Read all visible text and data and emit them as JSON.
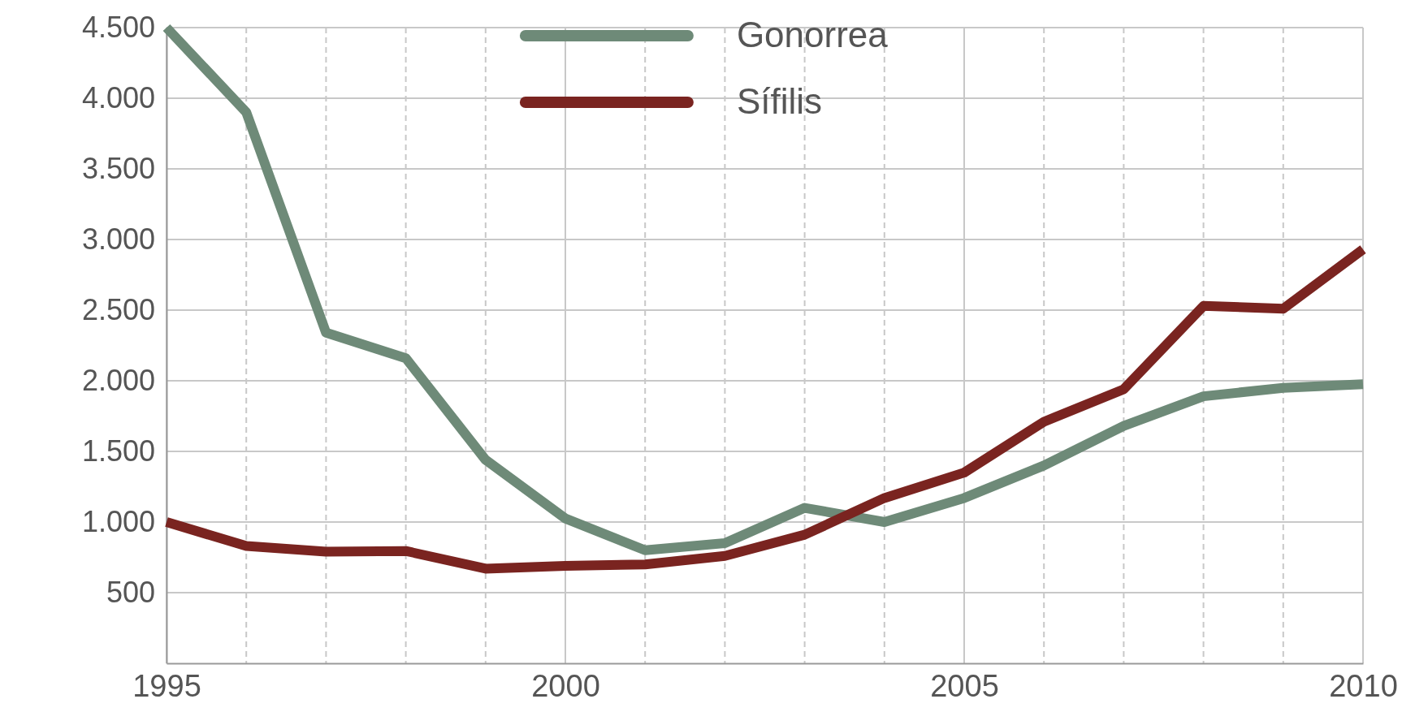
{
  "chart_data": {
    "type": "line",
    "x": [
      1995,
      1996,
      1997,
      1998,
      1999,
      2000,
      2001,
      2002,
      2003,
      2004,
      2005,
      2006,
      2007,
      2008,
      2009,
      2010
    ],
    "series": [
      {
        "name": "Gonorrea",
        "color": "#6e8a78",
        "values": [
          4500,
          3900,
          2340,
          2160,
          1440,
          1025,
          800,
          850,
          1100,
          1000,
          1170,
          1400,
          1680,
          1890,
          1950,
          1975
        ]
      },
      {
        "name": "Sífilis",
        "color": "#7a2420",
        "values": [
          1000,
          830,
          790,
          795,
          670,
          690,
          700,
          760,
          910,
          1170,
          1350,
          1710,
          1940,
          2530,
          2510,
          2930
        ]
      }
    ],
    "xlim": [
      1995,
      2010
    ],
    "xticks": [
      1995,
      {
        "value": 1996,
        "label": null
      },
      {
        "value": 1997,
        "label": null
      },
      {
        "value": 1998,
        "label": null
      },
      {
        "value": 1999,
        "label": null
      },
      2000,
      {
        "value": 2001,
        "label": null
      },
      {
        "value": 2002,
        "label": null
      },
      {
        "value": 2003,
        "label": null
      },
      {
        "value": 2004,
        "label": null
      },
      2005,
      {
        "value": 2006,
        "label": null
      },
      {
        "value": 2007,
        "label": null
      },
      {
        "value": 2008,
        "label": null
      },
      {
        "value": 2009,
        "label": null
      },
      2010
    ],
    "ylim": [
      0,
      4500
    ],
    "yticks": [
      {
        "value": 500,
        "label": "500"
      },
      {
        "value": 1000,
        "label": "1.000"
      },
      {
        "value": 1500,
        "label": "1.500"
      },
      {
        "value": 2000,
        "label": "2.000"
      },
      {
        "value": 2500,
        "label": "2.500"
      },
      {
        "value": 3000,
        "label": "3.000"
      },
      {
        "value": 3500,
        "label": "3.500"
      },
      {
        "value": 4000,
        "label": "4.000"
      },
      {
        "value": 4500,
        "label": "4.500"
      }
    ],
    "grid": true,
    "legend": "top",
    "marker": "none",
    "line_style": "solid"
  }
}
